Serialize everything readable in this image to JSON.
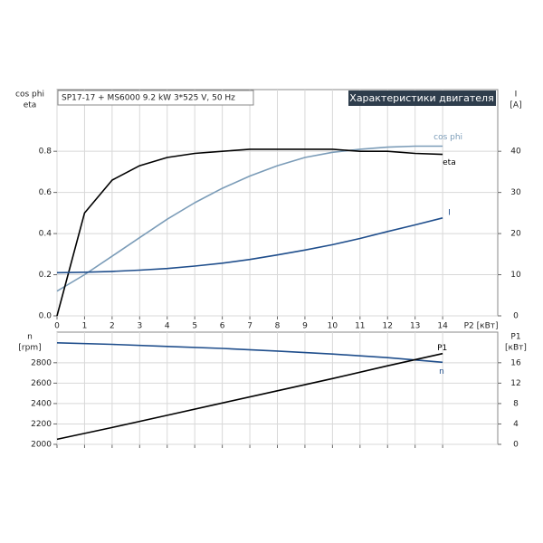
{
  "chart_data": [
    {
      "type": "line",
      "info": "SP17-17 + MS6000   9.2 kW   3*525 V, 50 Hz",
      "title": "Характеристики двигателя",
      "ylabel": [
        "cos phi",
        "eta"
      ],
      "y2label": [
        "I",
        "[A]"
      ],
      "xlabel": "P2 [кВт]",
      "x": [
        0,
        1,
        2,
        3,
        4,
        5,
        6,
        7,
        8,
        9,
        10,
        11,
        12,
        13,
        14
      ],
      "xlim": [
        0,
        16
      ],
      "xticks": [
        0,
        1,
        2,
        3,
        4,
        5,
        6,
        7,
        8,
        9,
        10,
        11,
        12,
        13,
        14
      ],
      "ylim": [
        0,
        1.1
      ],
      "yticks": [
        {
          "value": 0,
          "label": "0.0"
        },
        0.2,
        0.4,
        0.6,
        0.8
      ],
      "y2lim": [
        0,
        55
      ],
      "y2ticks": [
        0,
        10,
        20,
        30,
        40
      ],
      "grid": true,
      "series": [
        {
          "name": "cos phi",
          "color": "#7b9cb8",
          "values": [
            0.12,
            0.2,
            0.29,
            0.38,
            0.47,
            0.55,
            0.62,
            0.68,
            0.73,
            0.77,
            0.795,
            0.81,
            0.82,
            0.825,
            0.825
          ]
        },
        {
          "name": "eta",
          "color": "#000000",
          "values": [
            0,
            0.5,
            0.66,
            0.73,
            0.77,
            0.79,
            0.8,
            0.81,
            0.81,
            0.81,
            0.81,
            0.8,
            0.8,
            0.79,
            0.785
          ]
        },
        {
          "name": "I",
          "color": "#1f4e8c",
          "axis": "y2",
          "values": [
            10.5,
            10.6,
            10.8,
            11.1,
            11.5,
            12.1,
            12.8,
            13.7,
            14.8,
            16.0,
            17.3,
            18.8,
            20.5,
            22.1,
            23.8
          ]
        }
      ]
    },
    {
      "type": "line",
      "ylabel": [
        "n",
        "[rpm]"
      ],
      "y2label": [
        "P1",
        "[кВт]"
      ],
      "x": [
        0,
        2,
        4,
        6,
        8,
        10,
        12,
        14
      ],
      "xlim": [
        0,
        16
      ],
      "xticks": [
        0,
        1,
        2,
        3,
        4,
        5,
        6,
        7,
        8,
        9,
        10,
        11,
        12,
        13,
        14
      ],
      "show_xtick_labels": false,
      "ylim": [
        2000,
        3100
      ],
      "yticks": [
        2000,
        2200,
        2400,
        2600,
        2800
      ],
      "y2lim": [
        0,
        22
      ],
      "y2ticks": [
        0,
        4,
        8,
        12,
        16
      ],
      "grid": true,
      "series": [
        {
          "name": "n",
          "color": "#1f4e8c",
          "values": [
            2995,
            2980,
            2960,
            2940,
            2915,
            2885,
            2850,
            2805
          ]
        },
        {
          "name": "P1",
          "color": "#000000",
          "axis": "y2",
          "values": [
            1.0,
            3.3,
            5.7,
            8.1,
            10.5,
            12.9,
            15.4,
            17.8
          ]
        }
      ]
    }
  ]
}
